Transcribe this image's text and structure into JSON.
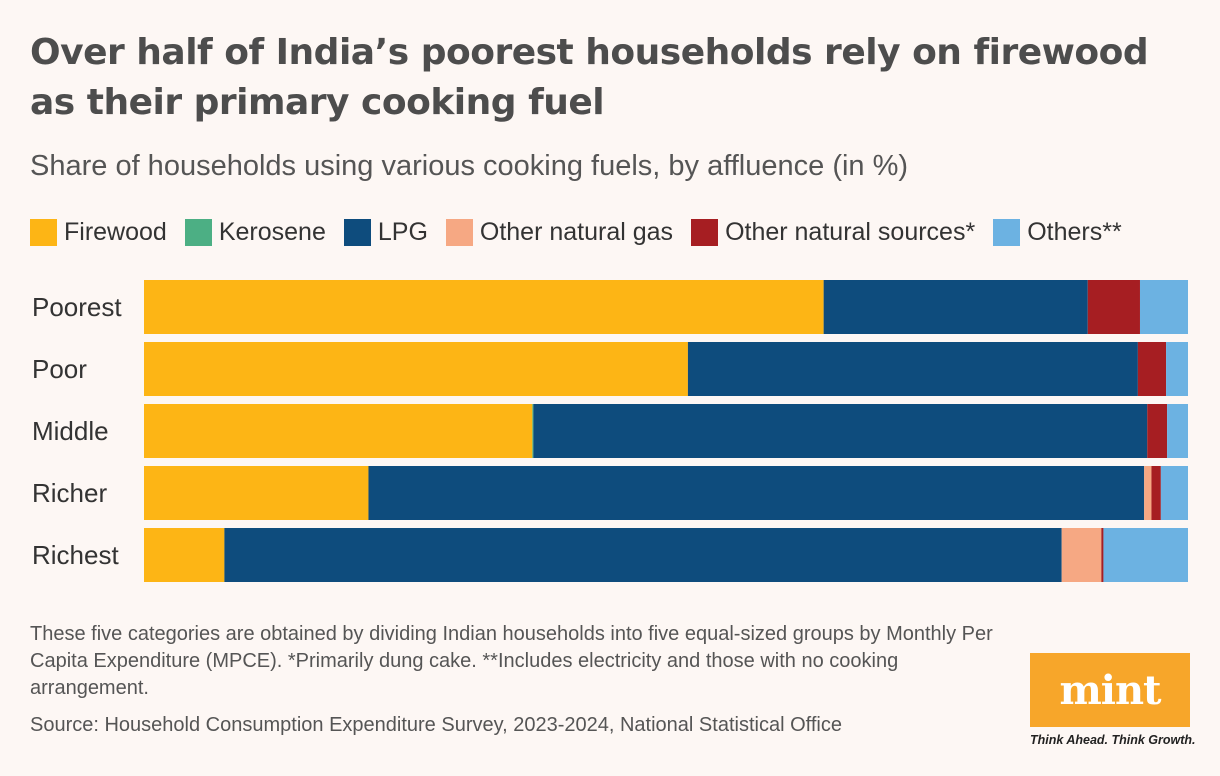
{
  "header": {
    "title": "Over half of India’s poorest households rely on firewood as their primary cooking fuel",
    "subtitle": "Share of households using various cooking fuels, by affluence (in %)"
  },
  "legend": [
    {
      "label": "Firewood",
      "color": "#fdb515"
    },
    {
      "label": "Kerosene",
      "color": "#4caf84"
    },
    {
      "label": "LPG",
      "color": "#0e4c7d"
    },
    {
      "label": "Other natural gas",
      "color": "#f6a883"
    },
    {
      "label": "Other natural sources*",
      "color": "#a61e22"
    },
    {
      "label": "Others**",
      "color": "#6cb2e2"
    }
  ],
  "chart_data": {
    "type": "bar",
    "orientation": "horizontal",
    "stacked": true,
    "title": "Over half of India’s poorest households rely on firewood as their primary cooking fuel",
    "subtitle": "Share of households using various cooking fuels, by affluence (in %)",
    "categories": [
      "Poorest",
      "Poor",
      "Middle",
      "Richer",
      "Richest"
    ],
    "xlim": [
      0,
      100
    ],
    "grid": false,
    "legend_position": "top",
    "series": [
      {
        "name": "Firewood",
        "color": "#fdb515",
        "values": [
          65.1,
          52.1,
          37.2,
          21.5,
          7.7
        ]
      },
      {
        "name": "Kerosene",
        "color": "#4caf84",
        "values": [
          0.0,
          0.0,
          0.1,
          0.0,
          0.0
        ]
      },
      {
        "name": "LPG",
        "color": "#0e4c7d",
        "values": [
          25.3,
          43.1,
          58.8,
          74.3,
          80.2
        ]
      },
      {
        "name": "Other natural gas",
        "color": "#f6a883",
        "values": [
          0.0,
          0.0,
          0.0,
          0.7,
          3.8
        ]
      },
      {
        "name": "Other natural sources*",
        "color": "#a61e22",
        "values": [
          5.0,
          2.7,
          1.9,
          0.9,
          0.2
        ]
      },
      {
        "name": "Others**",
        "color": "#6cb2e2",
        "values": [
          4.6,
          2.1,
          2.0,
          2.6,
          8.1
        ]
      }
    ]
  },
  "footer": {
    "note": "These five categories are obtained by dividing Indian households into five equal-sized groups by Monthly Per Capita Expenditure (MPCE). *Primarily dung cake. **Includes electricity and those with no cooking arrangement.",
    "source": "Source: Household Consumption Expenditure Survey, 2023-2024, National Statistical Office"
  },
  "brand": {
    "logo": "mint",
    "tagline": "Think Ahead. Think Growth.",
    "color": "#f7a62a"
  }
}
